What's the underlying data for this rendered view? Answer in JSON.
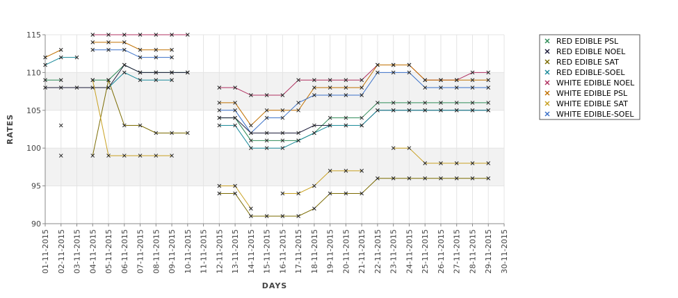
{
  "chart_data": {
    "type": "line",
    "title": "",
    "xlabel": "DAYS",
    "ylabel": "RATES",
    "ylim": [
      90,
      115
    ],
    "yticks": [
      90,
      95,
      100,
      105,
      110,
      115
    ],
    "x": [
      "01-11-2015",
      "02-11-2015",
      "03-11-2015",
      "04-11-2015",
      "05-11-2015",
      "06-11-2015",
      "07-11-2015",
      "08-11-2015",
      "09-11-2015",
      "10-11-2015",
      "11-11-2015",
      "12-11-2015",
      "13-11-2015",
      "14-11-2015",
      "15-11-2015",
      "16-11-2015",
      "17-11-2015",
      "18-11-2015",
      "19-11-2015",
      "20-11-2015",
      "21-11-2015",
      "22-11-2015",
      "23-11-2015",
      "24-11-2015",
      "25-11-2015",
      "26-11-2015",
      "27-11-2015",
      "28-11-2015",
      "29-11-2015",
      "30-11-2015"
    ],
    "grid": true,
    "legend_position": "right",
    "series": [
      {
        "name": "RED EDIBLE  PSL",
        "color": "#2e8b57",
        "values": [
          109,
          109,
          null,
          109,
          109,
          111,
          110,
          110,
          110,
          110,
          null,
          104,
          104,
          101,
          101,
          101,
          101,
          102,
          104,
          104,
          104,
          106,
          106,
          106,
          106,
          106,
          106,
          106,
          106,
          null
        ]
      },
      {
        "name": "RED EDIBLE NOEL",
        "color": "#1c1c3a",
        "values": [
          108,
          108,
          108,
          108,
          108,
          111,
          110,
          110,
          110,
          110,
          null,
          104,
          104,
          102,
          102,
          102,
          102,
          103,
          103,
          103,
          103,
          105,
          105,
          105,
          105,
          105,
          105,
          105,
          105,
          null
        ]
      },
      {
        "name": "RED EDIBLE SAT",
        "color": "#7a6a00",
        "values": [
          null,
          99,
          null,
          99,
          109,
          103,
          103,
          102,
          102,
          102,
          null,
          94,
          94,
          91,
          91,
          91,
          91,
          92,
          94,
          94,
          94,
          96,
          96,
          96,
          96,
          96,
          96,
          96,
          96,
          null
        ]
      },
      {
        "name": "RED EDIBLE-SOEL",
        "color": "#1a8a9a",
        "values": [
          111,
          112,
          112,
          null,
          108,
          110,
          109,
          109,
          109,
          null,
          null,
          103,
          103,
          100,
          100,
          100,
          101,
          102,
          103,
          103,
          103,
          105,
          105,
          105,
          105,
          105,
          105,
          105,
          105,
          null
        ]
      },
      {
        "name": "WHITE EDIBLE NOEL",
        "color": "#b03060",
        "values": [
          null,
          null,
          null,
          115,
          115,
          115,
          115,
          115,
          115,
          115,
          null,
          108,
          108,
          107,
          107,
          107,
          109,
          109,
          109,
          109,
          109,
          111,
          111,
          111,
          109,
          109,
          109,
          110,
          110,
          null
        ]
      },
      {
        "name": "WHITE EDIBLE PSL",
        "color": "#c07000",
        "values": [
          112,
          113,
          null,
          114,
          114,
          114,
          113,
          113,
          113,
          null,
          null,
          106,
          106,
          103,
          105,
          105,
          105,
          108,
          108,
          108,
          108,
          111,
          111,
          111,
          109,
          109,
          109,
          109,
          109,
          null
        ]
      },
      {
        "name": "WHITE EDIBLE SAT",
        "color": "#c8a020",
        "values": [
          null,
          103,
          null,
          109,
          99,
          99,
          99,
          99,
          99,
          null,
          null,
          95,
          95,
          92,
          null,
          94,
          94,
          95,
          97,
          97,
          97,
          null,
          100,
          100,
          98,
          98,
          98,
          98,
          98,
          null
        ]
      },
      {
        "name": "WHITE EDIBLE-SOEL",
        "color": "#3a70c8",
        "values": [
          null,
          null,
          null,
          113,
          113,
          113,
          112,
          112,
          112,
          null,
          null,
          105,
          105,
          102,
          104,
          104,
          106,
          107,
          107,
          107,
          107,
          110,
          110,
          110,
          108,
          108,
          108,
          108,
          108,
          null
        ]
      }
    ]
  }
}
